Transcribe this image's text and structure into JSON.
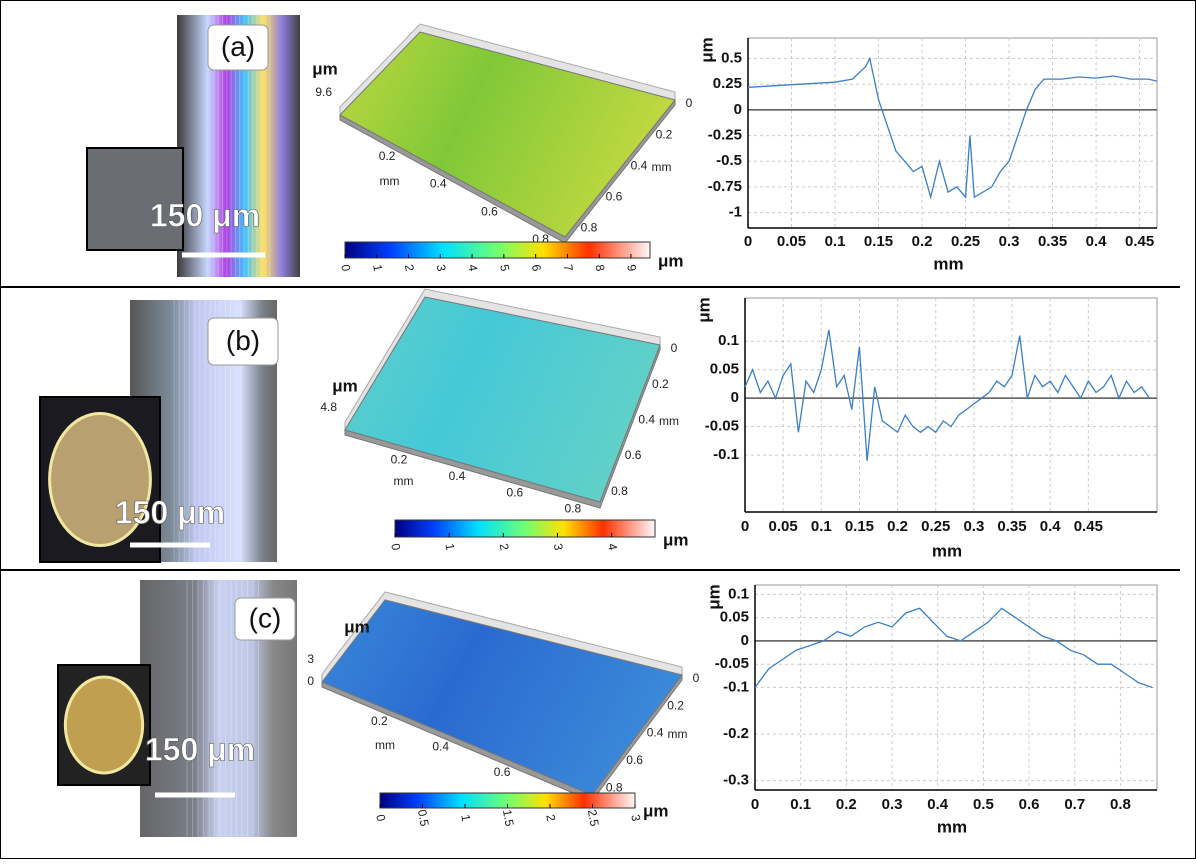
{
  "panels": [
    {
      "label": "(a)",
      "scale_bar": "150 μm",
      "surface": {
        "z_unit": "μm",
        "z_ticks": [
          9.6
        ],
        "x_ticks": [
          0.2,
          0.4,
          0.6,
          0.8
        ],
        "x_label": "mm",
        "y_ticks": [
          0,
          0.2,
          0.4,
          0.6,
          0.8
        ],
        "y_label": "mm",
        "colorbar_ticks": [
          0,
          1,
          2,
          3,
          4,
          5,
          6,
          7,
          8,
          9
        ],
        "colorbar_unit": "μm"
      }
    },
    {
      "label": "(b)",
      "scale_bar": "150 μm",
      "surface": {
        "z_unit": "μm",
        "z_ticks": [
          4.8
        ],
        "x_ticks": [
          0.2,
          0.4,
          0.6,
          0.8
        ],
        "x_label": "mm",
        "y_ticks": [
          0,
          0.2,
          0.4,
          0.6,
          0.8
        ],
        "y_label": "mm",
        "colorbar_ticks": [
          0,
          1,
          2,
          3,
          4
        ],
        "colorbar_unit": "μm"
      }
    },
    {
      "label": "(c)",
      "scale_bar": "150 μm",
      "surface": {
        "z_unit": "μm",
        "z_ticks": [
          3,
          0
        ],
        "x_ticks": [
          0.2,
          0.4,
          0.6,
          0.8
        ],
        "x_label": "mm",
        "y_ticks": [
          0,
          0.2,
          0.4,
          0.6,
          0.8
        ],
        "y_label": "mm",
        "colorbar_ticks": [
          0,
          0.5,
          1,
          1.5,
          2,
          2.5,
          3
        ],
        "colorbar_unit": "μm"
      }
    }
  ],
  "chart_data": [
    {
      "type": "line",
      "x_label": "mm",
      "y_label": "μm",
      "color": "#3a7fc8",
      "grid": true,
      "x": [
        0,
        0.02,
        0.04,
        0.06,
        0.08,
        0.1,
        0.12,
        0.13,
        0.135,
        0.14,
        0.145,
        0.15,
        0.16,
        0.17,
        0.18,
        0.19,
        0.2,
        0.21,
        0.22,
        0.23,
        0.24,
        0.25,
        0.255,
        0.26,
        0.27,
        0.28,
        0.29,
        0.3,
        0.31,
        0.32,
        0.33,
        0.34,
        0.36,
        0.38,
        0.4,
        0.42,
        0.44,
        0.46,
        0.47
      ],
      "values": [
        0.22,
        0.23,
        0.24,
        0.25,
        0.26,
        0.27,
        0.3,
        0.38,
        0.42,
        0.5,
        0.3,
        0.1,
        -0.15,
        -0.4,
        -0.5,
        -0.6,
        -0.55,
        -0.85,
        -0.5,
        -0.8,
        -0.75,
        -0.85,
        -0.25,
        -0.85,
        -0.8,
        -0.75,
        -0.6,
        -0.5,
        -0.25,
        0,
        0.2,
        0.3,
        0.3,
        0.32,
        0.31,
        0.33,
        0.3,
        0.3,
        0.28
      ],
      "xlim": [
        0,
        0.47
      ],
      "ylim": [
        -1.15,
        0.7
      ],
      "xticks": [
        0,
        0.05,
        0.1,
        0.15,
        0.2,
        0.25,
        0.3,
        0.35,
        0.4,
        0.45
      ],
      "yticks": [
        0.5,
        0.25,
        0,
        -0.25,
        -0.5,
        -0.75,
        -1
      ]
    },
    {
      "type": "line",
      "x_label": "mm",
      "y_label": "μm",
      "color": "#3a7fc8",
      "grid": true,
      "x": [
        0,
        0.01,
        0.02,
        0.03,
        0.04,
        0.05,
        0.06,
        0.07,
        0.08,
        0.09,
        0.1,
        0.11,
        0.12,
        0.13,
        0.14,
        0.15,
        0.16,
        0.17,
        0.18,
        0.19,
        0.2,
        0.21,
        0.22,
        0.23,
        0.24,
        0.25,
        0.26,
        0.27,
        0.28,
        0.29,
        0.3,
        0.31,
        0.32,
        0.33,
        0.34,
        0.35,
        0.36,
        0.37,
        0.38,
        0.39,
        0.4,
        0.41,
        0.42,
        0.43,
        0.44,
        0.45,
        0.46,
        0.47,
        0.48,
        0.49,
        0.5,
        0.51,
        0.52,
        0.53
      ],
      "values": [
        0.02,
        0.05,
        0.01,
        0.03,
        0.0,
        0.04,
        0.06,
        -0.06,
        0.03,
        0.01,
        0.05,
        0.12,
        0.02,
        0.04,
        -0.02,
        0.09,
        -0.11,
        0.02,
        -0.04,
        -0.05,
        -0.06,
        -0.03,
        -0.05,
        -0.06,
        -0.05,
        -0.06,
        -0.04,
        -0.05,
        -0.03,
        -0.02,
        -0.01,
        0.0,
        0.01,
        0.03,
        0.02,
        0.04,
        0.11,
        0.0,
        0.04,
        0.02,
        0.03,
        0.01,
        0.04,
        0.02,
        0.0,
        0.03,
        0.01,
        0.02,
        0.04,
        0.0,
        0.03,
        0.01,
        0.02,
        0.0
      ],
      "xlim": [
        0,
        0.54
      ],
      "ylim": [
        -0.2,
        0.176
      ],
      "xticks": [
        0,
        0.05,
        0.1,
        0.15,
        0.2,
        0.25,
        0.3,
        0.35,
        0.4,
        0.45
      ],
      "yticks": [
        0.1,
        0.05,
        0,
        -0.05,
        -0.1
      ]
    },
    {
      "type": "line",
      "x_label": "mm",
      "y_label": "μm",
      "color": "#3a7fc8",
      "grid": true,
      "x": [
        0,
        0.03,
        0.06,
        0.09,
        0.12,
        0.15,
        0.18,
        0.21,
        0.24,
        0.27,
        0.3,
        0.33,
        0.36,
        0.39,
        0.42,
        0.45,
        0.48,
        0.51,
        0.54,
        0.57,
        0.6,
        0.63,
        0.66,
        0.69,
        0.72,
        0.75,
        0.78,
        0.81,
        0.84,
        0.87
      ],
      "values": [
        -0.1,
        -0.06,
        -0.04,
        -0.02,
        -0.01,
        0.0,
        0.02,
        0.01,
        0.03,
        0.04,
        0.03,
        0.06,
        0.07,
        0.04,
        0.01,
        0.0,
        0.02,
        0.04,
        0.07,
        0.05,
        0.03,
        0.01,
        0.0,
        -0.02,
        -0.03,
        -0.05,
        -0.05,
        -0.07,
        -0.09,
        -0.1
      ],
      "xlim": [
        0,
        0.88
      ],
      "ylim": [
        -0.32,
        0.12
      ],
      "xticks": [
        0,
        0.1,
        0.2,
        0.3,
        0.4,
        0.5,
        0.6,
        0.7,
        0.8
      ],
      "yticks": [
        0.1,
        0.05,
        0,
        -0.05,
        -0.1,
        -0.2,
        -0.3
      ]
    }
  ]
}
